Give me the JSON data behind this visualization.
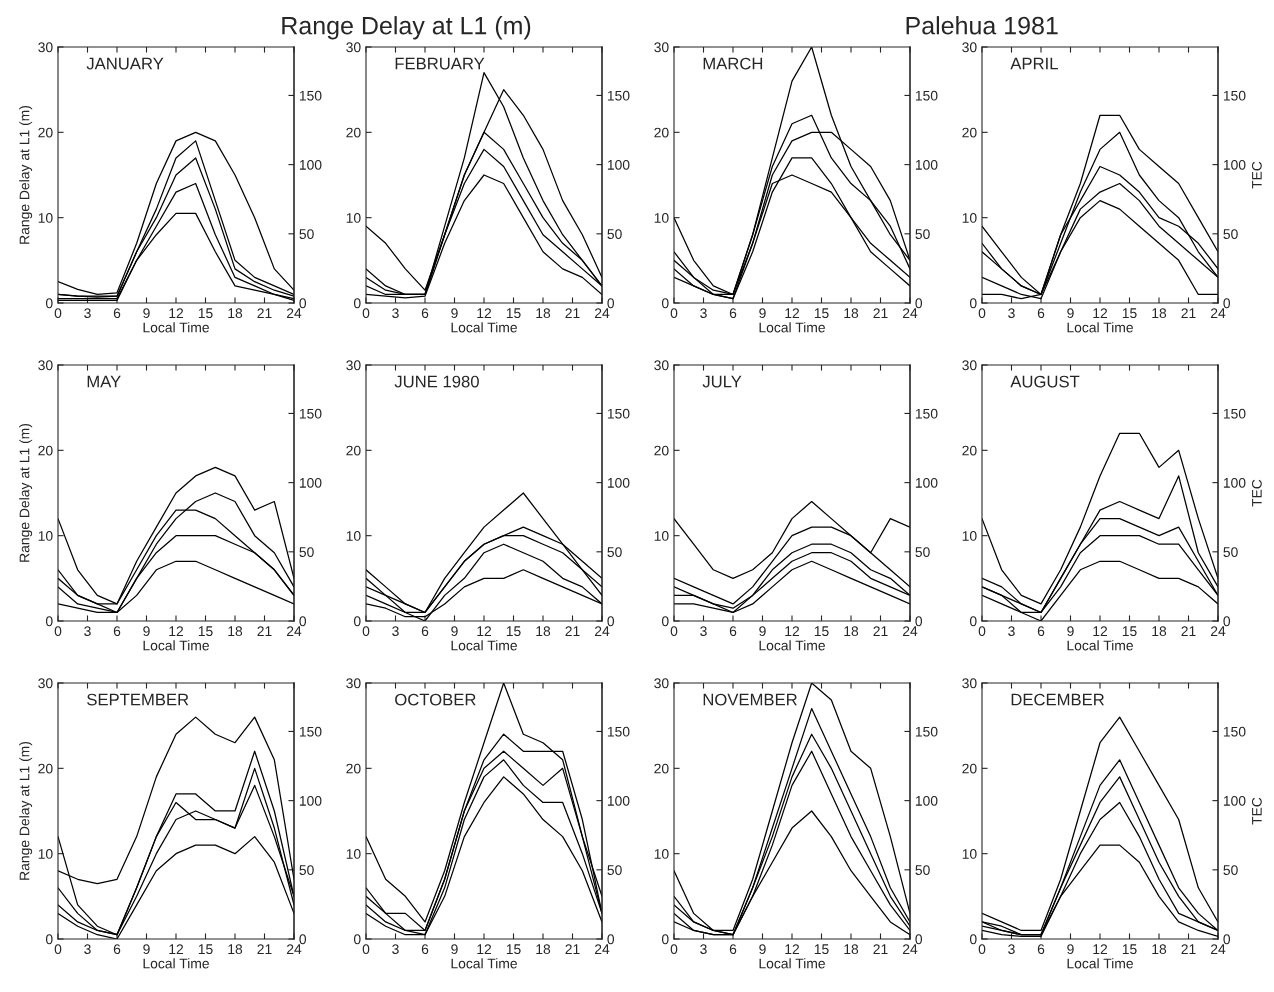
{
  "chart_data": [
    {
      "type": "line",
      "title": "JANUARY",
      "annotations": [
        "Range Delay at L1 (m)",
        "Palehua 1981"
      ],
      "xlabel": "Local Time",
      "ylabel": "Range Delay at L1 (m)",
      "x": [
        0,
        2,
        4,
        6,
        8,
        10,
        12,
        14,
        16,
        18,
        20,
        22,
        24
      ],
      "xlim": [
        0,
        24
      ],
      "xticks": [
        0,
        3,
        6,
        9,
        12,
        15,
        18,
        21,
        24
      ],
      "ylim": [
        0,
        30
      ],
      "yticks": [
        0,
        10,
        20,
        30
      ],
      "y2lim": [
        0,
        185
      ],
      "y2ticks": [
        0,
        50,
        100,
        150
      ],
      "series": [
        {
          "color": "#000000",
          "values": [
            2.5,
            1.6,
            1,
            1.2,
            7,
            14,
            19,
            20,
            19,
            15,
            10,
            4,
            1.5
          ]
        },
        {
          "color": "#000000",
          "values": [
            1,
            0.8,
            0.7,
            0.8,
            6,
            11,
            17,
            19,
            12,
            5,
            3,
            2,
            1
          ]
        },
        {
          "color": "#000000",
          "values": [
            0.5,
            0.5,
            0.5,
            0.5,
            5,
            9,
            13,
            14,
            8,
            3,
            2,
            1,
            0.5
          ]
        },
        {
          "color": "#000000",
          "values": [
            0.3,
            0.3,
            0.3,
            0.3,
            5,
            8,
            10.5,
            10.5,
            6,
            2,
            1.5,
            1,
            0.3
          ]
        },
        {
          "color": "#000000",
          "values": [
            1,
            0.8,
            0.8,
            0.8,
            6,
            10,
            15,
            17,
            11,
            4,
            2.5,
            1.5,
            0.8
          ]
        }
      ]
    },
    {
      "type": "line",
      "title": "FEBRUARY",
      "xlabel": "Local Time",
      "x": [
        0,
        2,
        4,
        6,
        8,
        10,
        12,
        14,
        16,
        18,
        20,
        22,
        24
      ],
      "xlim": [
        0,
        24
      ],
      "xticks": [
        0,
        3,
        6,
        9,
        12,
        15,
        18,
        21,
        24
      ],
      "ylim": [
        0,
        30
      ],
      "yticks": [
        0,
        10,
        20,
        30
      ],
      "y2lim": [
        0,
        185
      ],
      "y2ticks": [
        0,
        50,
        100,
        150
      ],
      "series": [
        {
          "color": "#000000",
          "values": [
            9,
            7,
            4,
            1.5,
            8,
            15,
            20,
            18,
            14,
            10,
            7,
            5,
            2
          ]
        },
        {
          "color": "#000000",
          "values": [
            4,
            2,
            1,
            1,
            9,
            17,
            27,
            23,
            17,
            12,
            8,
            5,
            2
          ]
        },
        {
          "color": "#000000",
          "values": [
            2,
            1,
            1,
            1,
            8,
            15,
            20,
            25,
            22,
            18,
            12,
            8,
            3
          ]
        },
        {
          "color": "#000000",
          "values": [
            1,
            0.8,
            0.6,
            0.8,
            7,
            12,
            15,
            14,
            10,
            6,
            4,
            3,
            1
          ]
        },
        {
          "color": "#000000",
          "values": [
            3,
            1.5,
            1,
            1,
            8,
            14,
            18,
            16,
            12,
            8,
            6,
            4,
            2
          ]
        }
      ]
    },
    {
      "type": "line",
      "title": "MARCH",
      "xlabel": "Local Time",
      "x": [
        0,
        2,
        4,
        6,
        8,
        10,
        12,
        14,
        16,
        18,
        20,
        22,
        24
      ],
      "xlim": [
        0,
        24
      ],
      "xticks": [
        0,
        3,
        6,
        9,
        12,
        15,
        18,
        21,
        24
      ],
      "ylim": [
        0,
        30
      ],
      "yticks": [
        0,
        10,
        20,
        30
      ],
      "y2lim": [
        0,
        185
      ],
      "y2ticks": [
        0,
        50,
        100,
        150
      ],
      "series": [
        {
          "color": "#000000",
          "values": [
            10,
            5,
            2,
            1,
            8,
            17,
            26,
            30,
            22,
            16,
            12,
            8,
            5
          ]
        },
        {
          "color": "#000000",
          "values": [
            6,
            3,
            1.5,
            1,
            8,
            16,
            21,
            22,
            17,
            14,
            12,
            9,
            4
          ]
        },
        {
          "color": "#000000",
          "values": [
            3,
            2,
            1,
            0.5,
            6,
            13,
            17,
            17,
            14,
            10,
            7,
            5,
            3
          ]
        },
        {
          "color": "#000000",
          "values": [
            4,
            2,
            1,
            1,
            7,
            14,
            15,
            14,
            13,
            10,
            6,
            4,
            2
          ]
        },
        {
          "color": "#000000",
          "values": [
            5,
            3,
            1,
            0.5,
            7,
            15,
            19,
            20,
            20,
            18,
            16,
            12,
            5
          ]
        }
      ]
    },
    {
      "type": "line",
      "title": "APRIL",
      "xlabel": "Local Time",
      "y2label": "TEC",
      "x": [
        0,
        2,
        4,
        6,
        8,
        10,
        12,
        14,
        16,
        18,
        20,
        22,
        24
      ],
      "xlim": [
        0,
        24
      ],
      "xticks": [
        0,
        3,
        6,
        9,
        12,
        15,
        18,
        21,
        24
      ],
      "ylim": [
        0,
        30
      ],
      "yticks": [
        0,
        10,
        20,
        30
      ],
      "y2lim": [
        0,
        185
      ],
      "y2ticks": [
        0,
        50,
        100,
        150
      ],
      "series": [
        {
          "color": "#000000",
          "values": [
            9,
            6,
            3,
            1,
            8,
            14,
            22,
            22,
            18,
            16,
            14,
            10,
            6
          ]
        },
        {
          "color": "#000000",
          "values": [
            6,
            4,
            2,
            1,
            7,
            13,
            18,
            20,
            15,
            12,
            10,
            6,
            3
          ]
        },
        {
          "color": "#000000",
          "values": [
            3,
            2,
            1,
            0.5,
            6,
            11,
            13,
            14,
            12,
            9,
            7,
            5,
            3
          ]
        },
        {
          "color": "#000000",
          "values": [
            1,
            1,
            0.5,
            1,
            6,
            10,
            12,
            11,
            9,
            7,
            5,
            1,
            1
          ]
        },
        {
          "color": "#000000",
          "values": [
            7,
            4,
            2,
            1,
            8,
            12,
            16,
            15,
            13,
            10,
            9,
            7,
            4
          ]
        }
      ]
    },
    {
      "type": "line",
      "title": "MAY",
      "xlabel": "Local Time",
      "ylabel": "Range Delay at L1 (m)",
      "x": [
        0,
        2,
        4,
        6,
        8,
        10,
        12,
        14,
        16,
        18,
        20,
        22,
        24
      ],
      "xlim": [
        0,
        24
      ],
      "xticks": [
        0,
        3,
        6,
        9,
        12,
        15,
        18,
        21,
        24
      ],
      "ylim": [
        0,
        30
      ],
      "yticks": [
        0,
        10,
        20,
        30
      ],
      "y2lim": [
        0,
        185
      ],
      "y2ticks": [
        0,
        50,
        100,
        150
      ],
      "series": [
        {
          "color": "#000000",
          "values": [
            12,
            6,
            3,
            2,
            7,
            11,
            15,
            17,
            18,
            17,
            13,
            14,
            5
          ]
        },
        {
          "color": "#000000",
          "values": [
            5,
            3,
            2,
            1,
            5,
            9,
            12,
            14,
            15,
            14,
            10,
            8,
            4
          ]
        },
        {
          "color": "#000000",
          "values": [
            4,
            2,
            1.5,
            1,
            5,
            8,
            10,
            10,
            10,
            9,
            8,
            6,
            3
          ]
        },
        {
          "color": "#000000",
          "values": [
            2,
            1.5,
            1,
            1,
            3,
            6,
            7,
            7,
            6,
            5,
            4,
            3,
            2
          ]
        },
        {
          "color": "#000000",
          "values": [
            6,
            3,
            2,
            2,
            6,
            10,
            13,
            13,
            12,
            10,
            8,
            6,
            3
          ]
        }
      ]
    },
    {
      "type": "line",
      "title": "JUNE 1980",
      "xlabel": "Local Time",
      "x": [
        0,
        2,
        4,
        6,
        8,
        10,
        12,
        14,
        16,
        18,
        20,
        22,
        24
      ],
      "xlim": [
        0,
        24
      ],
      "xticks": [
        0,
        3,
        6,
        9,
        12,
        15,
        18,
        21,
        24
      ],
      "ylim": [
        0,
        30
      ],
      "yticks": [
        0,
        10,
        20,
        30
      ],
      "y2lim": [
        0,
        185
      ],
      "y2ticks": [
        0,
        50,
        100,
        150
      ],
      "series": [
        {
          "color": "#000000",
          "values": [
            6,
            4,
            2,
            1,
            5,
            8,
            11,
            13,
            15,
            12,
            9,
            7,
            5
          ]
        },
        {
          "color": "#000000",
          "values": [
            4,
            3,
            1,
            1,
            4,
            7,
            9,
            10,
            10,
            9,
            8,
            6,
            3
          ]
        },
        {
          "color": "#000000",
          "values": [
            3,
            2,
            1,
            0,
            3,
            5,
            8,
            9,
            8,
            7,
            5,
            4,
            2
          ]
        },
        {
          "color": "#000000",
          "values": [
            2,
            1.5,
            0.5,
            0.5,
            2,
            4,
            5,
            5,
            6,
            5,
            4,
            3,
            2
          ]
        },
        {
          "color": "#000000",
          "values": [
            5,
            3,
            2,
            1,
            4,
            7,
            9,
            10,
            11,
            10,
            9,
            6,
            4
          ]
        }
      ]
    },
    {
      "type": "line",
      "title": "JULY",
      "xlabel": "Local Time",
      "x": [
        0,
        2,
        4,
        6,
        8,
        10,
        12,
        14,
        16,
        18,
        20,
        22,
        24
      ],
      "xlim": [
        0,
        24
      ],
      "xticks": [
        0,
        3,
        6,
        9,
        12,
        15,
        18,
        21,
        24
      ],
      "ylim": [
        0,
        30
      ],
      "yticks": [
        0,
        10,
        20,
        30
      ],
      "y2lim": [
        0,
        185
      ],
      "y2ticks": [
        0,
        50,
        100,
        150
      ],
      "series": [
        {
          "color": "#000000",
          "values": [
            12,
            9,
            6,
            5,
            6,
            8,
            12,
            14,
            12,
            10,
            8,
            12,
            11
          ]
        },
        {
          "color": "#000000",
          "values": [
            5,
            4,
            3,
            2,
            4,
            7,
            10,
            11,
            11,
            10,
            8,
            6,
            4
          ]
        },
        {
          "color": "#000000",
          "values": [
            4,
            3,
            2,
            1.5,
            3,
            6,
            8,
            9,
            9,
            8,
            6,
            5,
            3
          ]
        },
        {
          "color": "#000000",
          "values": [
            2,
            2,
            1.5,
            1,
            2,
            4,
            6,
            7,
            6,
            5,
            4,
            3,
            2
          ]
        },
        {
          "color": "#000000",
          "values": [
            3,
            3,
            2,
            1,
            3,
            5,
            7,
            8,
            8,
            7,
            5,
            4,
            3
          ]
        }
      ]
    },
    {
      "type": "line",
      "title": "AUGUST",
      "xlabel": "Local Time",
      "y2label": "TEC",
      "x": [
        0,
        2,
        4,
        6,
        8,
        10,
        12,
        14,
        16,
        18,
        20,
        22,
        24
      ],
      "xlim": [
        0,
        24
      ],
      "xticks": [
        0,
        3,
        6,
        9,
        12,
        15,
        18,
        21,
        24
      ],
      "ylim": [
        0,
        30
      ],
      "yticks": [
        0,
        10,
        20,
        30
      ],
      "y2lim": [
        0,
        185
      ],
      "y2ticks": [
        0,
        50,
        100,
        150
      ],
      "series": [
        {
          "color": "#000000",
          "values": [
            12,
            6,
            3,
            2,
            6,
            11,
            17,
            22,
            22,
            18,
            20,
            12,
            5
          ]
        },
        {
          "color": "#000000",
          "values": [
            5,
            4,
            2,
            1,
            5,
            9,
            13,
            14,
            13,
            12,
            17,
            8,
            4
          ]
        },
        {
          "color": "#000000",
          "values": [
            4,
            3,
            1,
            1,
            4,
            8,
            10,
            10,
            10,
            9,
            9,
            6,
            3
          ]
        },
        {
          "color": "#000000",
          "values": [
            3,
            2,
            1,
            0,
            3,
            6,
            7,
            7,
            6,
            5,
            5,
            4,
            2
          ]
        },
        {
          "color": "#000000",
          "values": [
            4,
            3,
            2,
            1,
            5,
            9,
            12,
            12,
            11,
            10,
            11,
            7,
            3
          ]
        }
      ]
    },
    {
      "type": "line",
      "title": "SEPTEMBER",
      "xlabel": "Local Time",
      "ylabel": "Range Delay at L1 (m)",
      "x": [
        0,
        2,
        4,
        6,
        8,
        10,
        12,
        14,
        16,
        18,
        20,
        22,
        24
      ],
      "xlim": [
        0,
        24
      ],
      "xticks": [
        0,
        3,
        6,
        9,
        12,
        15,
        18,
        21,
        24
      ],
      "ylim": [
        0,
        30
      ],
      "yticks": [
        0,
        10,
        20,
        30
      ],
      "y2lim": [
        0,
        185
      ],
      "y2ticks": [
        0,
        50,
        100,
        150
      ],
      "series": [
        {
          "color": "#000000",
          "values": [
            8,
            7,
            6.5,
            7,
            12,
            19,
            24,
            26,
            24,
            23,
            26,
            21,
            7
          ]
        },
        {
          "color": "#000000",
          "values": [
            6,
            3,
            1,
            0.5,
            6,
            12,
            17,
            17,
            15,
            15,
            22,
            15,
            5
          ]
        },
        {
          "color": "#000000",
          "values": [
            4,
            2,
            1,
            0.5,
            5,
            10,
            14,
            15,
            14,
            13,
            20,
            13,
            4
          ]
        },
        {
          "color": "#000000",
          "values": [
            3,
            1.5,
            0.5,
            0,
            4,
            8,
            10,
            11,
            11,
            10,
            12,
            9,
            3
          ]
        },
        {
          "color": "#000000",
          "values": [
            12,
            4,
            1.5,
            0.5,
            6,
            12,
            16,
            14,
            14,
            13,
            18,
            12,
            5
          ]
        }
      ]
    },
    {
      "type": "line",
      "title": "OCTOBER",
      "xlabel": "Local Time",
      "x": [
        0,
        2,
        4,
        6,
        8,
        10,
        12,
        14,
        16,
        18,
        20,
        22,
        24
      ],
      "xlim": [
        0,
        24
      ],
      "xticks": [
        0,
        3,
        6,
        9,
        12,
        15,
        18,
        21,
        24
      ],
      "ylim": [
        0,
        30
      ],
      "yticks": [
        0,
        10,
        20,
        30
      ],
      "y2lim": [
        0,
        185
      ],
      "y2ticks": [
        0,
        50,
        100,
        150
      ],
      "series": [
        {
          "color": "#000000",
          "values": [
            12,
            7,
            5,
            2,
            8,
            16,
            23,
            30,
            24,
            23,
            21,
            12,
            5
          ]
        },
        {
          "color": "#000000",
          "values": [
            5,
            3,
            3,
            1,
            7,
            15,
            21,
            24,
            22,
            22,
            22,
            14,
            3
          ]
        },
        {
          "color": "#000000",
          "values": [
            4,
            2,
            1,
            0.5,
            6,
            14,
            19,
            21,
            18,
            16,
            16,
            10,
            3
          ]
        },
        {
          "color": "#000000",
          "values": [
            3,
            1.5,
            0.5,
            0.5,
            5,
            12,
            16,
            19,
            17,
            14,
            12,
            8,
            2
          ]
        },
        {
          "color": "#000000",
          "values": [
            6,
            3,
            1,
            1,
            7,
            15,
            20,
            22,
            20,
            18,
            20,
            12,
            3
          ]
        }
      ]
    },
    {
      "type": "line",
      "title": "NOVEMBER",
      "xlabel": "Local Time",
      "x": [
        0,
        2,
        4,
        6,
        8,
        10,
        12,
        14,
        16,
        18,
        20,
        22,
        24
      ],
      "xlim": [
        0,
        24
      ],
      "xticks": [
        0,
        3,
        6,
        9,
        12,
        15,
        18,
        21,
        24
      ],
      "ylim": [
        0,
        30
      ],
      "yticks": [
        0,
        10,
        20,
        30
      ],
      "y2lim": [
        0,
        185
      ],
      "y2ticks": [
        0,
        50,
        100,
        150
      ],
      "series": [
        {
          "color": "#000000",
          "values": [
            8,
            3,
            1,
            1,
            7,
            15,
            23,
            30,
            28,
            22,
            20,
            12,
            3
          ]
        },
        {
          "color": "#000000",
          "values": [
            5,
            2,
            1,
            0.5,
            6,
            13,
            20,
            27,
            22,
            17,
            12,
            6,
            2
          ]
        },
        {
          "color": "#000000",
          "values": [
            3,
            1,
            0.5,
            0.5,
            5,
            11,
            18,
            22,
            17,
            12,
            8,
            4,
            1
          ]
        },
        {
          "color": "#000000",
          "values": [
            2,
            1,
            0.5,
            0.5,
            5,
            9,
            13,
            15,
            12,
            8,
            5,
            2,
            0.5
          ]
        },
        {
          "color": "#000000",
          "values": [
            4,
            2,
            1,
            0.5,
            6,
            12,
            19,
            24,
            20,
            15,
            10,
            5,
            1.5
          ]
        }
      ]
    },
    {
      "type": "line",
      "title": "DECEMBER",
      "xlabel": "Local Time",
      "y2label": "TEC",
      "x": [
        0,
        2,
        4,
        6,
        8,
        10,
        12,
        14,
        16,
        18,
        20,
        22,
        24
      ],
      "xlim": [
        0,
        24
      ],
      "xticks": [
        0,
        3,
        6,
        9,
        12,
        15,
        18,
        21,
        24
      ],
      "ylim": [
        0,
        30
      ],
      "yticks": [
        0,
        10,
        20,
        30
      ],
      "y2lim": [
        0,
        185
      ],
      "y2ticks": [
        0,
        50,
        100,
        150
      ],
      "series": [
        {
          "color": "#000000",
          "values": [
            3,
            2,
            1,
            1,
            7,
            15,
            23,
            26,
            22,
            18,
            14,
            6,
            2
          ]
        },
        {
          "color": "#000000",
          "values": [
            2,
            1,
            0.5,
            0.5,
            6,
            12,
            18,
            21,
            16,
            11,
            6,
            3,
            1
          ]
        },
        {
          "color": "#000000",
          "values": [
            1.5,
            1,
            0.5,
            0.5,
            5,
            10,
            14,
            16,
            12,
            7,
            3,
            2,
            1
          ]
        },
        {
          "color": "#000000",
          "values": [
            1,
            0.5,
            0.3,
            0.3,
            5,
            8,
            11,
            11,
            9,
            5,
            2,
            1,
            0.3
          ]
        },
        {
          "color": "#000000",
          "values": [
            2,
            1.5,
            0.5,
            0.5,
            6,
            11,
            16,
            19,
            14,
            9,
            5,
            2,
            1
          ]
        }
      ]
    }
  ]
}
